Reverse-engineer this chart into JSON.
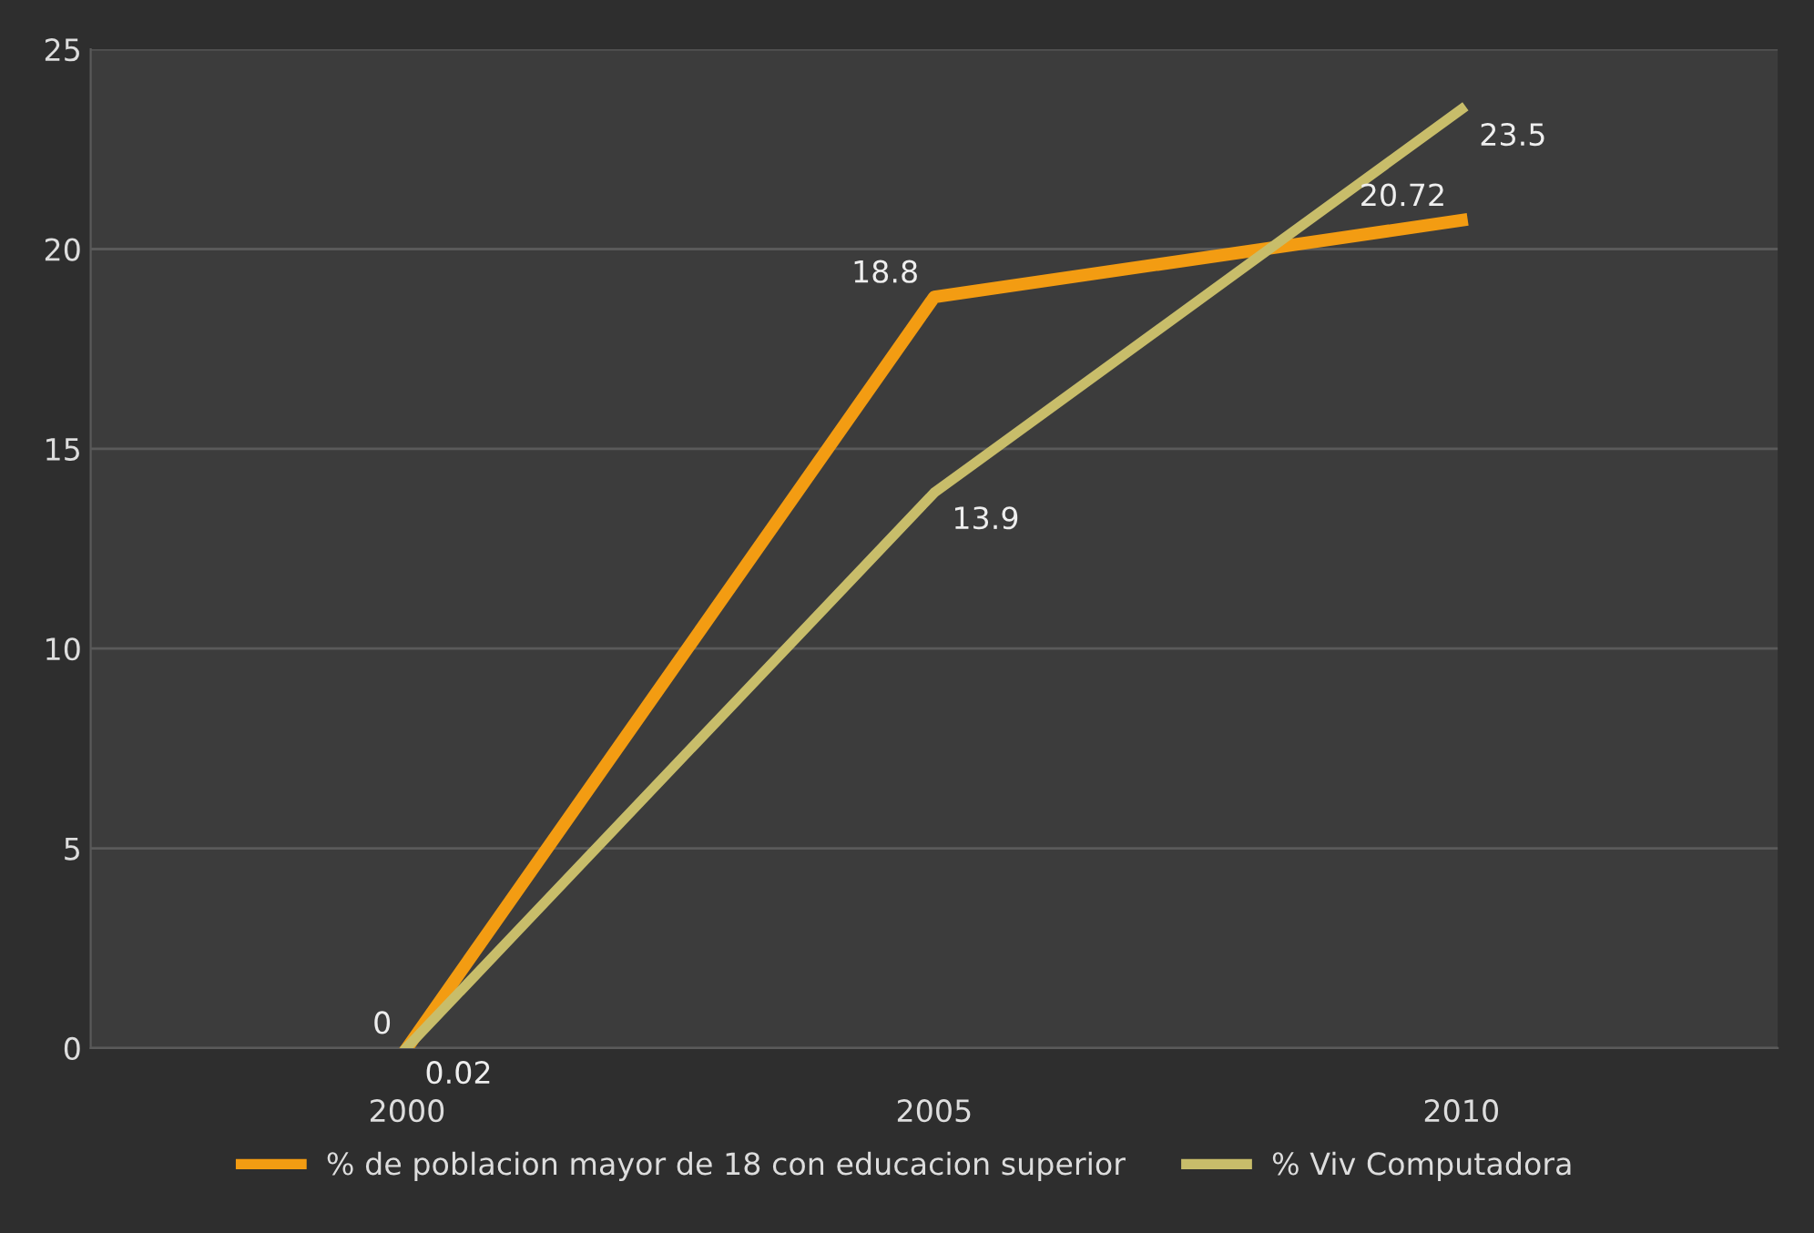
{
  "chart_data": {
    "type": "line",
    "categories": [
      "2000",
      "2005",
      "2010"
    ],
    "series": [
      {
        "name": "% de poblacion mayor de 18 con educacion superior",
        "color": "#f39c12",
        "values": [
          0,
          18.8,
          20.72
        ]
      },
      {
        "name": "% Viv Computadora",
        "color": "#c8bd6a",
        "values": [
          0.02,
          13.9,
          23.5
        ]
      }
    ],
    "ylim": [
      0,
      25
    ],
    "yticks": [
      0,
      5,
      10,
      15,
      20,
      25
    ],
    "grid": "y",
    "legend": "bottom",
    "data_labels": true,
    "marker": "none",
    "line_style": "solid"
  }
}
